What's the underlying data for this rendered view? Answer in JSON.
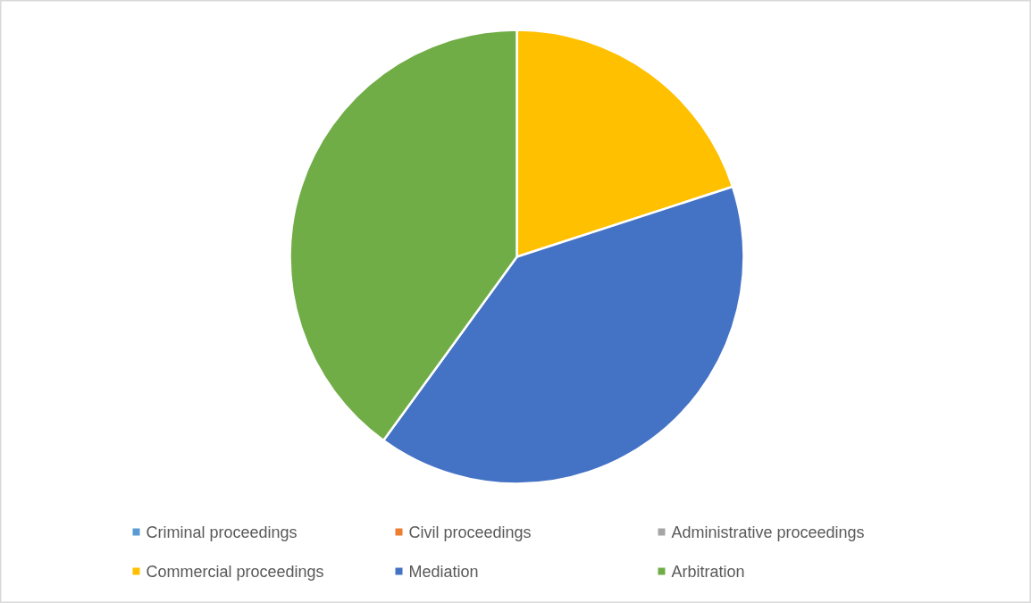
{
  "chart_data": {
    "type": "pie",
    "categories": [
      "Criminal proceedings",
      "Civil proceedings",
      "Administrative proceedings",
      "Commercial proceedings",
      "Mediation",
      "Arbitration"
    ],
    "values": [
      0,
      0,
      0,
      20,
      40,
      40
    ],
    "colors": [
      "#5b9bd5",
      "#ed7d31",
      "#a5a5a5",
      "#ffc000",
      "#4472c4",
      "#70ad47"
    ],
    "legend": "bottom"
  }
}
